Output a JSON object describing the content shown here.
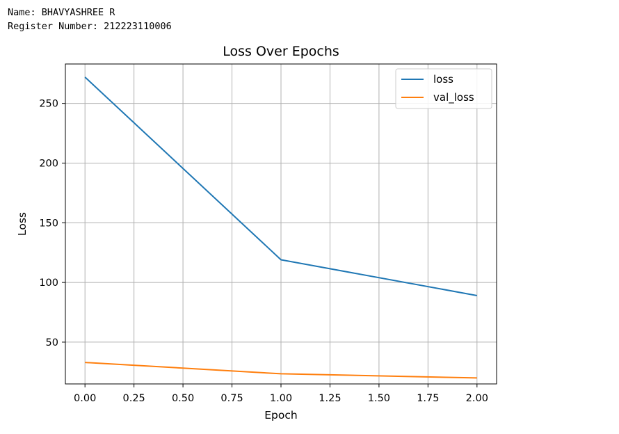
{
  "header": {
    "name_line": "Name: BHAVYASHREE R",
    "register_line": "Register Number: 212223110006"
  },
  "colors": {
    "loss": "#1f77b4",
    "val_loss": "#ff7f0e",
    "grid": "#b0b0b0"
  },
  "chart_data": {
    "type": "line",
    "title": "Loss Over Epochs",
    "xlabel": "Epoch",
    "ylabel": "Loss",
    "xlim": [
      -0.1,
      2.1
    ],
    "ylim": [
      15,
      283
    ],
    "xticks": [
      0.0,
      0.25,
      0.5,
      0.75,
      1.0,
      1.25,
      1.5,
      1.75,
      2.0
    ],
    "xtick_labels": [
      "0.00",
      "0.25",
      "0.50",
      "0.75",
      "1.00",
      "1.25",
      "1.50",
      "1.75",
      "2.00"
    ],
    "yticks": [
      50,
      100,
      150,
      200,
      250
    ],
    "ytick_labels": [
      "50",
      "100",
      "150",
      "200",
      "250"
    ],
    "grid": true,
    "legend_position": "top-right",
    "series": [
      {
        "name": "loss",
        "x": [
          0,
          1,
          2
        ],
        "values": [
          272,
          119,
          89
        ]
      },
      {
        "name": "val_loss",
        "x": [
          0,
          1,
          2
        ],
        "values": [
          33,
          23.5,
          20
        ]
      }
    ]
  }
}
